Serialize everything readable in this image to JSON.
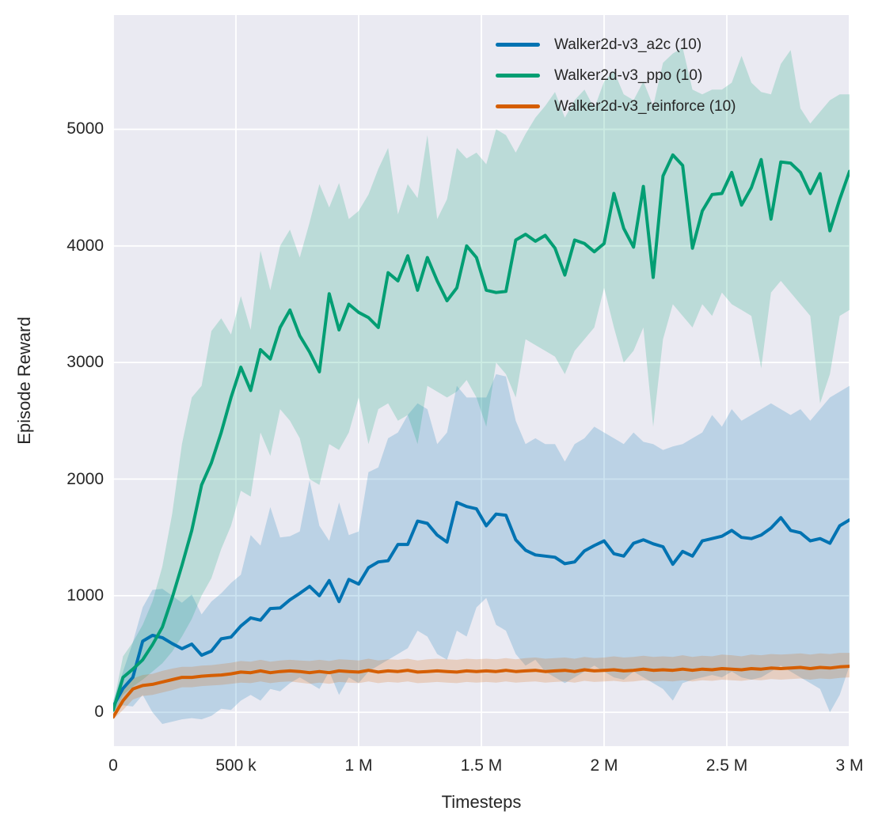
{
  "figure": {
    "background": "#ffffff",
    "plot_background": "#eaeaf2",
    "grid_color": "#ffffff",
    "text_color": "#262626",
    "xlabel": "Timesteps",
    "ylabel": "Episode Reward",
    "x_ticks": [
      {
        "value": 0,
        "label": "0"
      },
      {
        "value": 500,
        "label": "500 k"
      },
      {
        "value": 1000,
        "label": "1 M"
      },
      {
        "value": 1500,
        "label": "1.5 M"
      },
      {
        "value": 2000,
        "label": "2 M"
      },
      {
        "value": 2500,
        "label": "2.5 M"
      },
      {
        "value": 3000,
        "label": "3 M"
      }
    ],
    "y_ticks": [
      {
        "value": 0,
        "label": "0"
      },
      {
        "value": 1000,
        "label": "1000"
      },
      {
        "value": 2000,
        "label": "2000"
      },
      {
        "value": 3000,
        "label": "3000"
      },
      {
        "value": 4000,
        "label": "4000"
      },
      {
        "value": 5000,
        "label": "5000"
      }
    ],
    "xlim_k": [
      0,
      3000
    ],
    "ylim": [
      -290,
      5980
    ]
  },
  "legend": {
    "items": [
      {
        "label": "Walker2d-v3_a2c (10)",
        "color": "#0173b2"
      },
      {
        "label": "Walker2d-v3_ppo (10)",
        "color": "#029e73"
      },
      {
        "label": "Walker2d-v3_reinforce (10)",
        "color": "#d55e00"
      }
    ]
  },
  "chart_data": {
    "type": "line",
    "title": "",
    "xlabel": "Timesteps",
    "ylabel": "Episode Reward",
    "x_unit": "thousand timesteps",
    "grid": true,
    "legend_position": "upper right (inside plot, frameless)",
    "band_opacity": 0.2,
    "line_width": 4,
    "xlim_k": [
      0,
      3000
    ],
    "ylim": [
      -290,
      5980
    ],
    "x_k": [
      0,
      40,
      80,
      120,
      160,
      200,
      240,
      280,
      320,
      360,
      400,
      440,
      480,
      520,
      560,
      600,
      640,
      680,
      720,
      760,
      800,
      840,
      880,
      920,
      960,
      1000,
      1040,
      1080,
      1120,
      1160,
      1200,
      1240,
      1280,
      1320,
      1360,
      1400,
      1440,
      1480,
      1520,
      1560,
      1600,
      1640,
      1680,
      1720,
      1760,
      1800,
      1840,
      1880,
      1920,
      1960,
      2000,
      2040,
      2080,
      2120,
      2160,
      2200,
      2240,
      2280,
      2320,
      2360,
      2400,
      2440,
      2480,
      2520,
      2560,
      2600,
      2640,
      2680,
      2720,
      2760,
      2800,
      2840,
      2880,
      2920,
      2960,
      3000
    ],
    "series": [
      {
        "name": "Walker2d-v3_a2c (10)",
        "color": "#0173b2",
        "mean": [
          50,
          205,
          300,
          610,
          660,
          640,
          590,
          545,
          585,
          490,
          525,
          630,
          645,
          740,
          810,
          790,
          890,
          895,
          965,
          1020,
          1080,
          1000,
          1130,
          950,
          1140,
          1100,
          1240,
          1290,
          1300,
          1440,
          1440,
          1640,
          1620,
          1520,
          1460,
          1800,
          1765,
          1745,
          1600,
          1700,
          1690,
          1480,
          1390,
          1350,
          1340,
          1330,
          1275,
          1290,
          1385,
          1430,
          1470,
          1360,
          1340,
          1450,
          1480,
          1445,
          1420,
          1270,
          1380,
          1340,
          1470,
          1490,
          1510,
          1560,
          1500,
          1490,
          1520,
          1580,
          1670,
          1560,
          1540,
          1470,
          1490,
          1450,
          1600,
          1650
        ],
        "lo": [
          0,
          60,
          50,
          150,
          0,
          -100,
          -80,
          -60,
          -50,
          -60,
          -30,
          30,
          20,
          100,
          150,
          100,
          200,
          180,
          250,
          300,
          250,
          200,
          350,
          150,
          300,
          250,
          350,
          400,
          450,
          500,
          550,
          700,
          650,
          500,
          450,
          700,
          650,
          900,
          980,
          750,
          700,
          500,
          400,
          450,
          350,
          300,
          250,
          300,
          350,
          400,
          350,
          300,
          280,
          350,
          300,
          250,
          200,
          100,
          250,
          280,
          300,
          320,
          300,
          350,
          300,
          280,
          300,
          350,
          400,
          350,
          300,
          250,
          200,
          0,
          150,
          400
        ],
        "hi": [
          100,
          350,
          600,
          900,
          1050,
          1060,
          1000,
          940,
          1010,
          840,
          950,
          1020,
          1110,
          1180,
          1520,
          1430,
          1760,
          1500,
          1510,
          1550,
          1990,
          1600,
          1470,
          1800,
          1520,
          1550,
          2060,
          2100,
          2350,
          2400,
          2550,
          2650,
          2600,
          2300,
          2400,
          2800,
          2700,
          2700,
          2700,
          2900,
          2880,
          2500,
          2300,
          2350,
          2300,
          2300,
          2150,
          2300,
          2350,
          2450,
          2400,
          2350,
          2300,
          2400,
          2320,
          2300,
          2250,
          2280,
          2300,
          2350,
          2400,
          2550,
          2450,
          2600,
          2500,
          2550,
          2600,
          2650,
          2600,
          2550,
          2600,
          2500,
          2600,
          2700,
          2750,
          2800
        ]
      },
      {
        "name": "Walker2d-v3_ppo (10)",
        "color": "#029e73",
        "mean": [
          20,
          300,
          370,
          450,
          580,
          730,
          980,
          1260,
          1560,
          1950,
          2140,
          2400,
          2700,
          2960,
          2760,
          3110,
          3030,
          3300,
          3450,
          3230,
          3090,
          2920,
          3590,
          3280,
          3500,
          3430,
          3385,
          3300,
          3770,
          3700,
          3915,
          3620,
          3900,
          3700,
          3530,
          3640,
          4000,
          3900,
          3620,
          3600,
          3610,
          4050,
          4100,
          4040,
          4090,
          3980,
          3750,
          4050,
          4020,
          3950,
          4020,
          4450,
          4150,
          3990,
          4510,
          3730,
          4600,
          4780,
          4690,
          3980,
          4300,
          4440,
          4450,
          4630,
          4350,
          4500,
          4740,
          4230,
          4720,
          4710,
          4630,
          4450,
          4620,
          4130,
          4400,
          4640
        ],
        "lo": [
          -20,
          150,
          220,
          280,
          350,
          420,
          520,
          650,
          800,
          1000,
          1150,
          1400,
          1600,
          1900,
          1850,
          2400,
          2200,
          2600,
          2500,
          2350,
          2000,
          1950,
          2300,
          2250,
          2400,
          2700,
          2300,
          2600,
          2650,
          2500,
          2550,
          2300,
          2800,
          2750,
          2700,
          2750,
          2850,
          2700,
          2450,
          3000,
          2900,
          2700,
          3200,
          3150,
          3100,
          3050,
          2900,
          3100,
          3200,
          3300,
          3640,
          3300,
          3000,
          3100,
          3300,
          2450,
          3200,
          3500,
          3400,
          3300,
          3500,
          3400,
          3600,
          3500,
          3450,
          3400,
          2950,
          3600,
          3700,
          3600,
          3500,
          3400,
          2650,
          2900,
          3400,
          3450
        ],
        "hi": [
          60,
          480,
          600,
          750,
          950,
          1250,
          1700,
          2300,
          2700,
          2800,
          3270,
          3380,
          3240,
          3570,
          3280,
          3960,
          3620,
          4000,
          4140,
          3900,
          4200,
          4530,
          4330,
          4540,
          4230,
          4300,
          4440,
          4660,
          4840,
          4270,
          4530,
          4410,
          4950,
          4230,
          4400,
          4840,
          4750,
          4800,
          4700,
          5000,
          4950,
          4800,
          4960,
          5100,
          5200,
          5320,
          5100,
          5250,
          5340,
          5180,
          5410,
          5500,
          5300,
          5250,
          5410,
          5200,
          5570,
          5650,
          5700,
          5340,
          5300,
          5340,
          5340,
          5400,
          5630,
          5400,
          5320,
          5300,
          5560,
          5680,
          5180,
          5050,
          5150,
          5250,
          5300,
          5300
        ]
      },
      {
        "name": "Walker2d-v3_reinforce (10)",
        "color": "#d55e00",
        "mean": [
          -40,
          100,
          200,
          230,
          240,
          260,
          280,
          300,
          300,
          310,
          315,
          320,
          330,
          345,
          340,
          355,
          340,
          350,
          355,
          350,
          340,
          350,
          340,
          355,
          350,
          345,
          360,
          345,
          355,
          350,
          360,
          345,
          350,
          355,
          350,
          345,
          355,
          350,
          355,
          350,
          360,
          350,
          355,
          360,
          350,
          355,
          360,
          350,
          365,
          355,
          360,
          365,
          355,
          360,
          370,
          360,
          365,
          360,
          370,
          360,
          370,
          365,
          375,
          370,
          365,
          375,
          370,
          380,
          375,
          380,
          385,
          375,
          385,
          380,
          390,
          395
        ],
        "lo": [
          -60,
          20,
          110,
          140,
          150,
          170,
          190,
          215,
          215,
          225,
          230,
          235,
          245,
          255,
          250,
          265,
          250,
          260,
          265,
          255,
          245,
          255,
          245,
          260,
          255,
          250,
          265,
          250,
          260,
          255,
          265,
          250,
          255,
          260,
          255,
          250,
          260,
          255,
          260,
          255,
          265,
          255,
          260,
          265,
          255,
          260,
          265,
          255,
          270,
          260,
          265,
          270,
          260,
          265,
          275,
          265,
          270,
          265,
          275,
          265,
          275,
          270,
          280,
          275,
          270,
          280,
          275,
          285,
          280,
          285,
          290,
          280,
          290,
          285,
          295,
          300
        ],
        "hi": [
          -20,
          180,
          290,
          320,
          330,
          355,
          375,
          390,
          390,
          400,
          405,
          415,
          425,
          440,
          435,
          450,
          435,
          445,
          450,
          445,
          440,
          450,
          440,
          455,
          450,
          445,
          460,
          445,
          455,
          450,
          460,
          445,
          455,
          460,
          455,
          450,
          460,
          455,
          460,
          455,
          465,
          455,
          465,
          470,
          460,
          465,
          470,
          460,
          475,
          465,
          470,
          480,
          470,
          475,
          485,
          475,
          480,
          475,
          490,
          475,
          485,
          480,
          495,
          490,
          480,
          495,
          490,
          500,
          495,
          500,
          505,
          495,
          505,
          500,
          510,
          510
        ]
      }
    ]
  }
}
